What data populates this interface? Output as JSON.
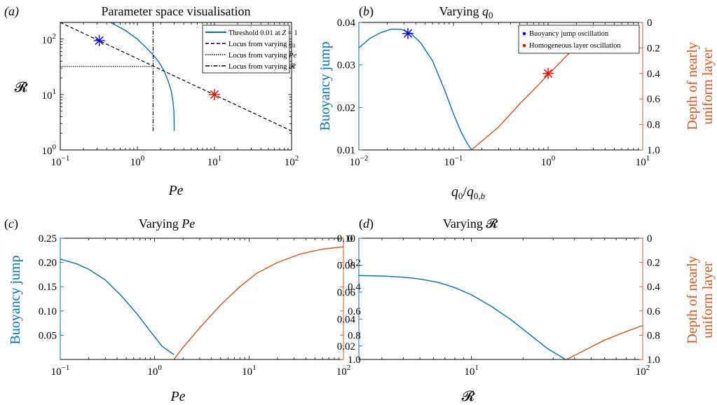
{
  "colors": {
    "blue": "#0072BD",
    "orange": "#D95319",
    "marker_blue": "#0000FF",
    "marker_red": "#FF0000",
    "black": "#000000"
  },
  "chart_data": [
    {
      "panel": "(a)",
      "type": "line",
      "title": "Parameter space visualisation",
      "xlabel": "Pe",
      "ylabel": "R",
      "xscale": "log",
      "yscale": "log",
      "xlim": [
        0.1,
        100
      ],
      "ylim": [
        1,
        200
      ],
      "xticks": [
        "10^-1",
        "10^0",
        "10^1",
        "10^2"
      ],
      "yticks": [
        "10^0",
        "10^1",
        "10^2"
      ],
      "legend_placement": "top-right",
      "series": [
        {
          "name": "Threshold 0.01 at Z = 1",
          "style": "solid",
          "color": "#0072BD",
          "x": [
            0.45,
            0.7,
            1.0,
            1.3,
            1.6,
            1.9,
            2.2,
            2.5,
            2.75,
            2.9,
            2.98,
            3.0,
            3.0
          ],
          "y": [
            200,
            143,
            100,
            70,
            52,
            38.6,
            27.4,
            17.8,
            11.6,
            7.4,
            4.9,
            3.2,
            2.2
          ]
        },
        {
          "name": "Locus from varying q_0",
          "style": "dashed",
          "color": "#000000",
          "x": [
            0.1,
            100
          ],
          "y": [
            200,
            2.2
          ]
        },
        {
          "name": "Locus from varying Pe",
          "style": "dotted",
          "color": "#000000",
          "x": [
            0.1,
            1.6
          ],
          "y": [
            32,
            32
          ]
        },
        {
          "name": "Locus from varying R",
          "style": "dashdot",
          "color": "#000000",
          "x": [
            1.6,
            1.6
          ],
          "y": [
            200,
            2.2
          ]
        }
      ],
      "markers": [
        {
          "x": 0.32,
          "y": 94,
          "color": "#0000FF",
          "symbol": "asterisk"
        },
        {
          "x": 10,
          "y": 10,
          "color": "#FF0000",
          "symbol": "asterisk"
        }
      ]
    },
    {
      "panel": "(b)",
      "type": "line",
      "title": "Varying q_0",
      "xlabel": "q_0/q_0,b",
      "ylabel": "Buoyancy jump",
      "ylabel_right": "Depth of nearly uniform layer",
      "xscale": "log",
      "xlim": [
        0.01,
        10
      ],
      "ylim": [
        0.01,
        0.04
      ],
      "ylim_right": [
        1.0,
        0
      ],
      "xticks": [
        "10^-2",
        "10^-1",
        "10^0",
        "10^1"
      ],
      "yticks": [
        "0.01",
        "0.02",
        "0.03",
        "0.04"
      ],
      "yticks_right": [
        "0",
        "0.2",
        "0.4",
        "0.6",
        "0.8",
        "1.0"
      ],
      "legend_placement": "top-right",
      "legend": [
        "Buoyancy jump oscillation",
        "Homogeneous layer oscillation"
      ],
      "series": [
        {
          "name": "Buoyancy jump",
          "axis": "left",
          "color": "#0072BD",
          "x": [
            0.01,
            0.013,
            0.017,
            0.022,
            0.028,
            0.035,
            0.045,
            0.06,
            0.08,
            0.1,
            0.12,
            0.14,
            0.155
          ],
          "y": [
            0.034,
            0.0362,
            0.0376,
            0.0384,
            0.0384,
            0.0375,
            0.0352,
            0.031,
            0.0243,
            0.0185,
            0.0143,
            0.0115,
            0.0101
          ]
        },
        {
          "name": "Depth of nearly uniform layer",
          "axis": "right",
          "color": "#D95319",
          "x": [
            0.155,
            0.2,
            0.3,
            0.5,
            0.7,
            1.0,
            1.4,
            2.0,
            3.0
          ],
          "y": [
            1.0,
            0.93,
            0.82,
            0.64,
            0.53,
            0.41,
            0.3,
            0.18,
            0.05
          ]
        }
      ],
      "markers": [
        {
          "x": 0.033,
          "y": 0.0374,
          "axis": "left",
          "color": "#0000FF",
          "symbol": "asterisk"
        },
        {
          "x": 1.0,
          "y": 0.4,
          "axis": "right",
          "color": "#FF0000",
          "symbol": "asterisk"
        }
      ]
    },
    {
      "panel": "(c)",
      "type": "line",
      "title": "Varying Pe",
      "xlabel": "Pe",
      "ylabel": "Buoyancy jump",
      "ylabel_right": "",
      "xscale": "log",
      "xlim": [
        0.1,
        100
      ],
      "ylim": [
        0.0,
        0.25
      ],
      "ylim_right": [
        1.0,
        0
      ],
      "xticks": [
        "10^-1",
        "10^0",
        "10^1",
        "10^2"
      ],
      "yticks": [
        "0.05",
        "0.10",
        "0.15",
        "0.20",
        "0.25"
      ],
      "yticks_right": [
        "0",
        "0.2",
        "0.4",
        "0.6",
        "0.8",
        "1.0"
      ],
      "series": [
        {
          "name": "Buoyancy jump",
          "axis": "left",
          "color": "#0072BD",
          "x": [
            0.1,
            0.15,
            0.2,
            0.3,
            0.45,
            0.65,
            0.9,
            1.2,
            1.6
          ],
          "y": [
            0.207,
            0.197,
            0.186,
            0.164,
            0.13,
            0.094,
            0.058,
            0.027,
            0.01
          ]
        },
        {
          "name": "Depth of nearly uniform layer",
          "axis": "right",
          "color": "#D95319",
          "x": [
            1.6,
            2.0,
            3.0,
            5.0,
            8.0,
            12,
            20,
            35,
            60,
            100
          ],
          "y": [
            1.0,
            0.9,
            0.74,
            0.55,
            0.4,
            0.29,
            0.2,
            0.13,
            0.09,
            0.07
          ]
        }
      ]
    },
    {
      "panel": "(d)",
      "type": "line",
      "title": "Varying R",
      "xlabel": "R",
      "ylabel": "",
      "ylabel_right": "Depth of nearly uniform layer",
      "xscale": "log",
      "xlim": [
        2.2,
        100
      ],
      "ylim": [
        0.01,
        0.1
      ],
      "ylim_right": [
        1.0,
        0
      ],
      "xticks": [
        "10^1",
        "10^2"
      ],
      "yticks": [
        "0.02",
        "0.04",
        "0.06",
        "0.08",
        "0.10"
      ],
      "yticks_right": [
        "0",
        "0.2",
        "0.4",
        "0.6",
        "0.8",
        "1.0"
      ],
      "series": [
        {
          "name": "Buoyancy jump",
          "axis": "left",
          "color": "#0072BD",
          "x": [
            2.2,
            3.0,
            4.0,
            5.0,
            6.5,
            8.0,
            10,
            13,
            17,
            22,
            28,
            36
          ],
          "y": [
            0.0723,
            0.0719,
            0.0711,
            0.0697,
            0.067,
            0.0633,
            0.058,
            0.0496,
            0.0395,
            0.0283,
            0.0178,
            0.0095
          ]
        },
        {
          "name": "Depth of nearly uniform layer",
          "axis": "right",
          "color": "#D95319",
          "x": [
            36,
            45,
            60,
            80,
            100
          ],
          "y": [
            1.0,
            0.93,
            0.84,
            0.77,
            0.72
          ]
        }
      ]
    }
  ]
}
